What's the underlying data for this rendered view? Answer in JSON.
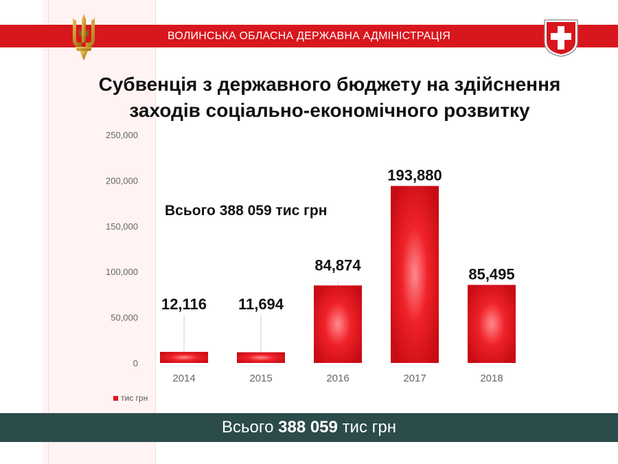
{
  "header": {
    "title": "ВОЛИНСЬКА ОБЛАСНА ДЕРЖАВНА АДМІНІСТРАЦІЯ"
  },
  "slide": {
    "title_line1": "Субвенція з державного бюджету на здійснення",
    "title_line2": "заходів соціально-економічного розвитку",
    "total_note": "Всього 388 059 тис грн"
  },
  "footer": {
    "prefix": "Всього ",
    "amount": "388 059",
    "suffix": " тис грн"
  },
  "colors": {
    "brand_red": "#d8161d",
    "bar_red": "#e0141c",
    "footer_teal": "#2c4b4b"
  },
  "chart_data": {
    "type": "bar",
    "categories": [
      "2014",
      "2015",
      "2016",
      "2017",
      "2018"
    ],
    "series": [
      {
        "name": "тис грн",
        "values": [
          12116,
          11694,
          84874,
          193880,
          85495
        ]
      }
    ],
    "data_labels": [
      "12,116",
      "11,694",
      "84,874",
      "193,880",
      "85,495"
    ],
    "y_ticks": [
      "0",
      "50,000",
      "100,000",
      "150,000",
      "200,000",
      "250,000"
    ],
    "ylim": [
      0,
      250000
    ],
    "grid": false,
    "legend": "bottom-left"
  }
}
